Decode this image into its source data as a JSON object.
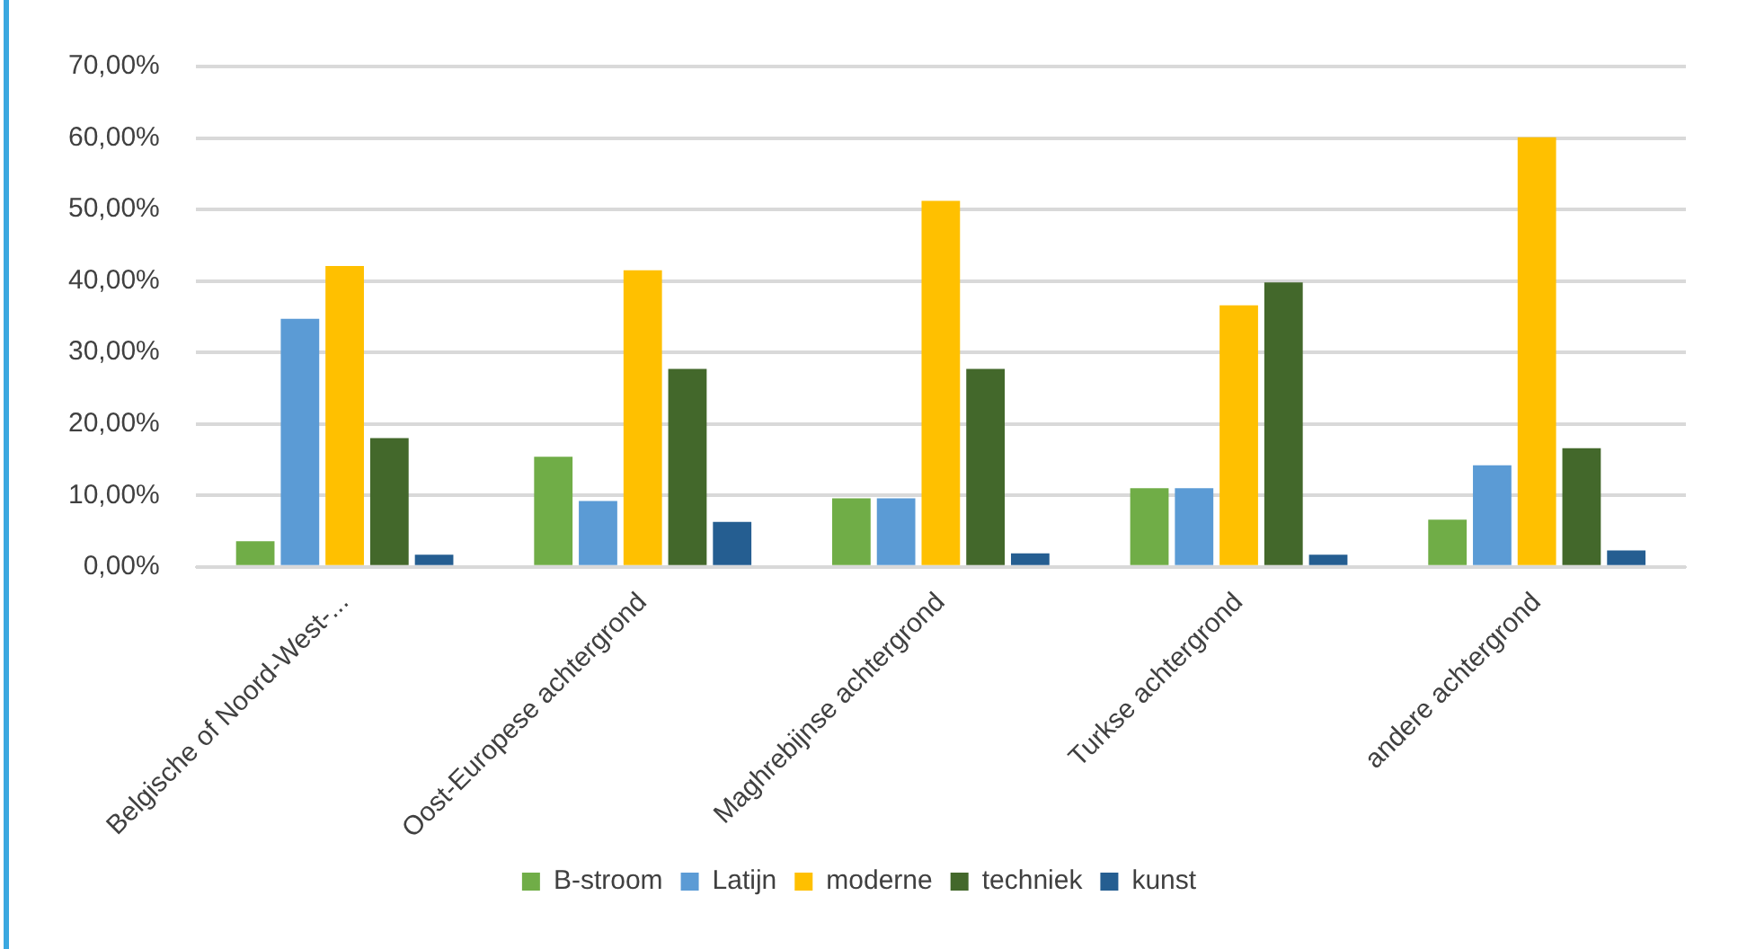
{
  "chart_data": {
    "type": "bar",
    "categories": [
      "Belgische of Noord-West-...",
      "Oost-Europese achtergrond",
      "Maghrebijnse achtergrond",
      "Turkse achtergrond",
      "andere achtergrond"
    ],
    "series": [
      {
        "name": "B-stroom",
        "color": "#70ad47",
        "values": [
          3.6,
          15.4,
          9.6,
          11.0,
          6.6
        ]
      },
      {
        "name": "Latijn",
        "color": "#5b9bd5",
        "values": [
          34.7,
          9.2,
          9.6,
          11.0,
          14.2
        ]
      },
      {
        "name": "moderne",
        "color": "#ffc000",
        "values": [
          42.1,
          41.5,
          51.2,
          36.6,
          60.1
        ]
      },
      {
        "name": "techniek",
        "color": "#43682b",
        "values": [
          18.0,
          27.7,
          27.7,
          39.8,
          16.6
        ]
      },
      {
        "name": "kunst",
        "color": "#255e91",
        "values": [
          1.7,
          6.3,
          1.9,
          1.7,
          2.3
        ]
      }
    ],
    "ylim": [
      0,
      70
    ],
    "yticks": [
      {
        "value": 0,
        "label": "0,00%"
      },
      {
        "value": 10,
        "label": "10,00%"
      },
      {
        "value": 20,
        "label": "20,00%"
      },
      {
        "value": 30,
        "label": "30,00%"
      },
      {
        "value": 40,
        "label": "40,00%"
      },
      {
        "value": 50,
        "label": "50,00%"
      },
      {
        "value": 60,
        "label": "60,00%"
      },
      {
        "value": 70,
        "label": "70,00%"
      }
    ],
    "grid": "y",
    "legend": "bottom"
  }
}
